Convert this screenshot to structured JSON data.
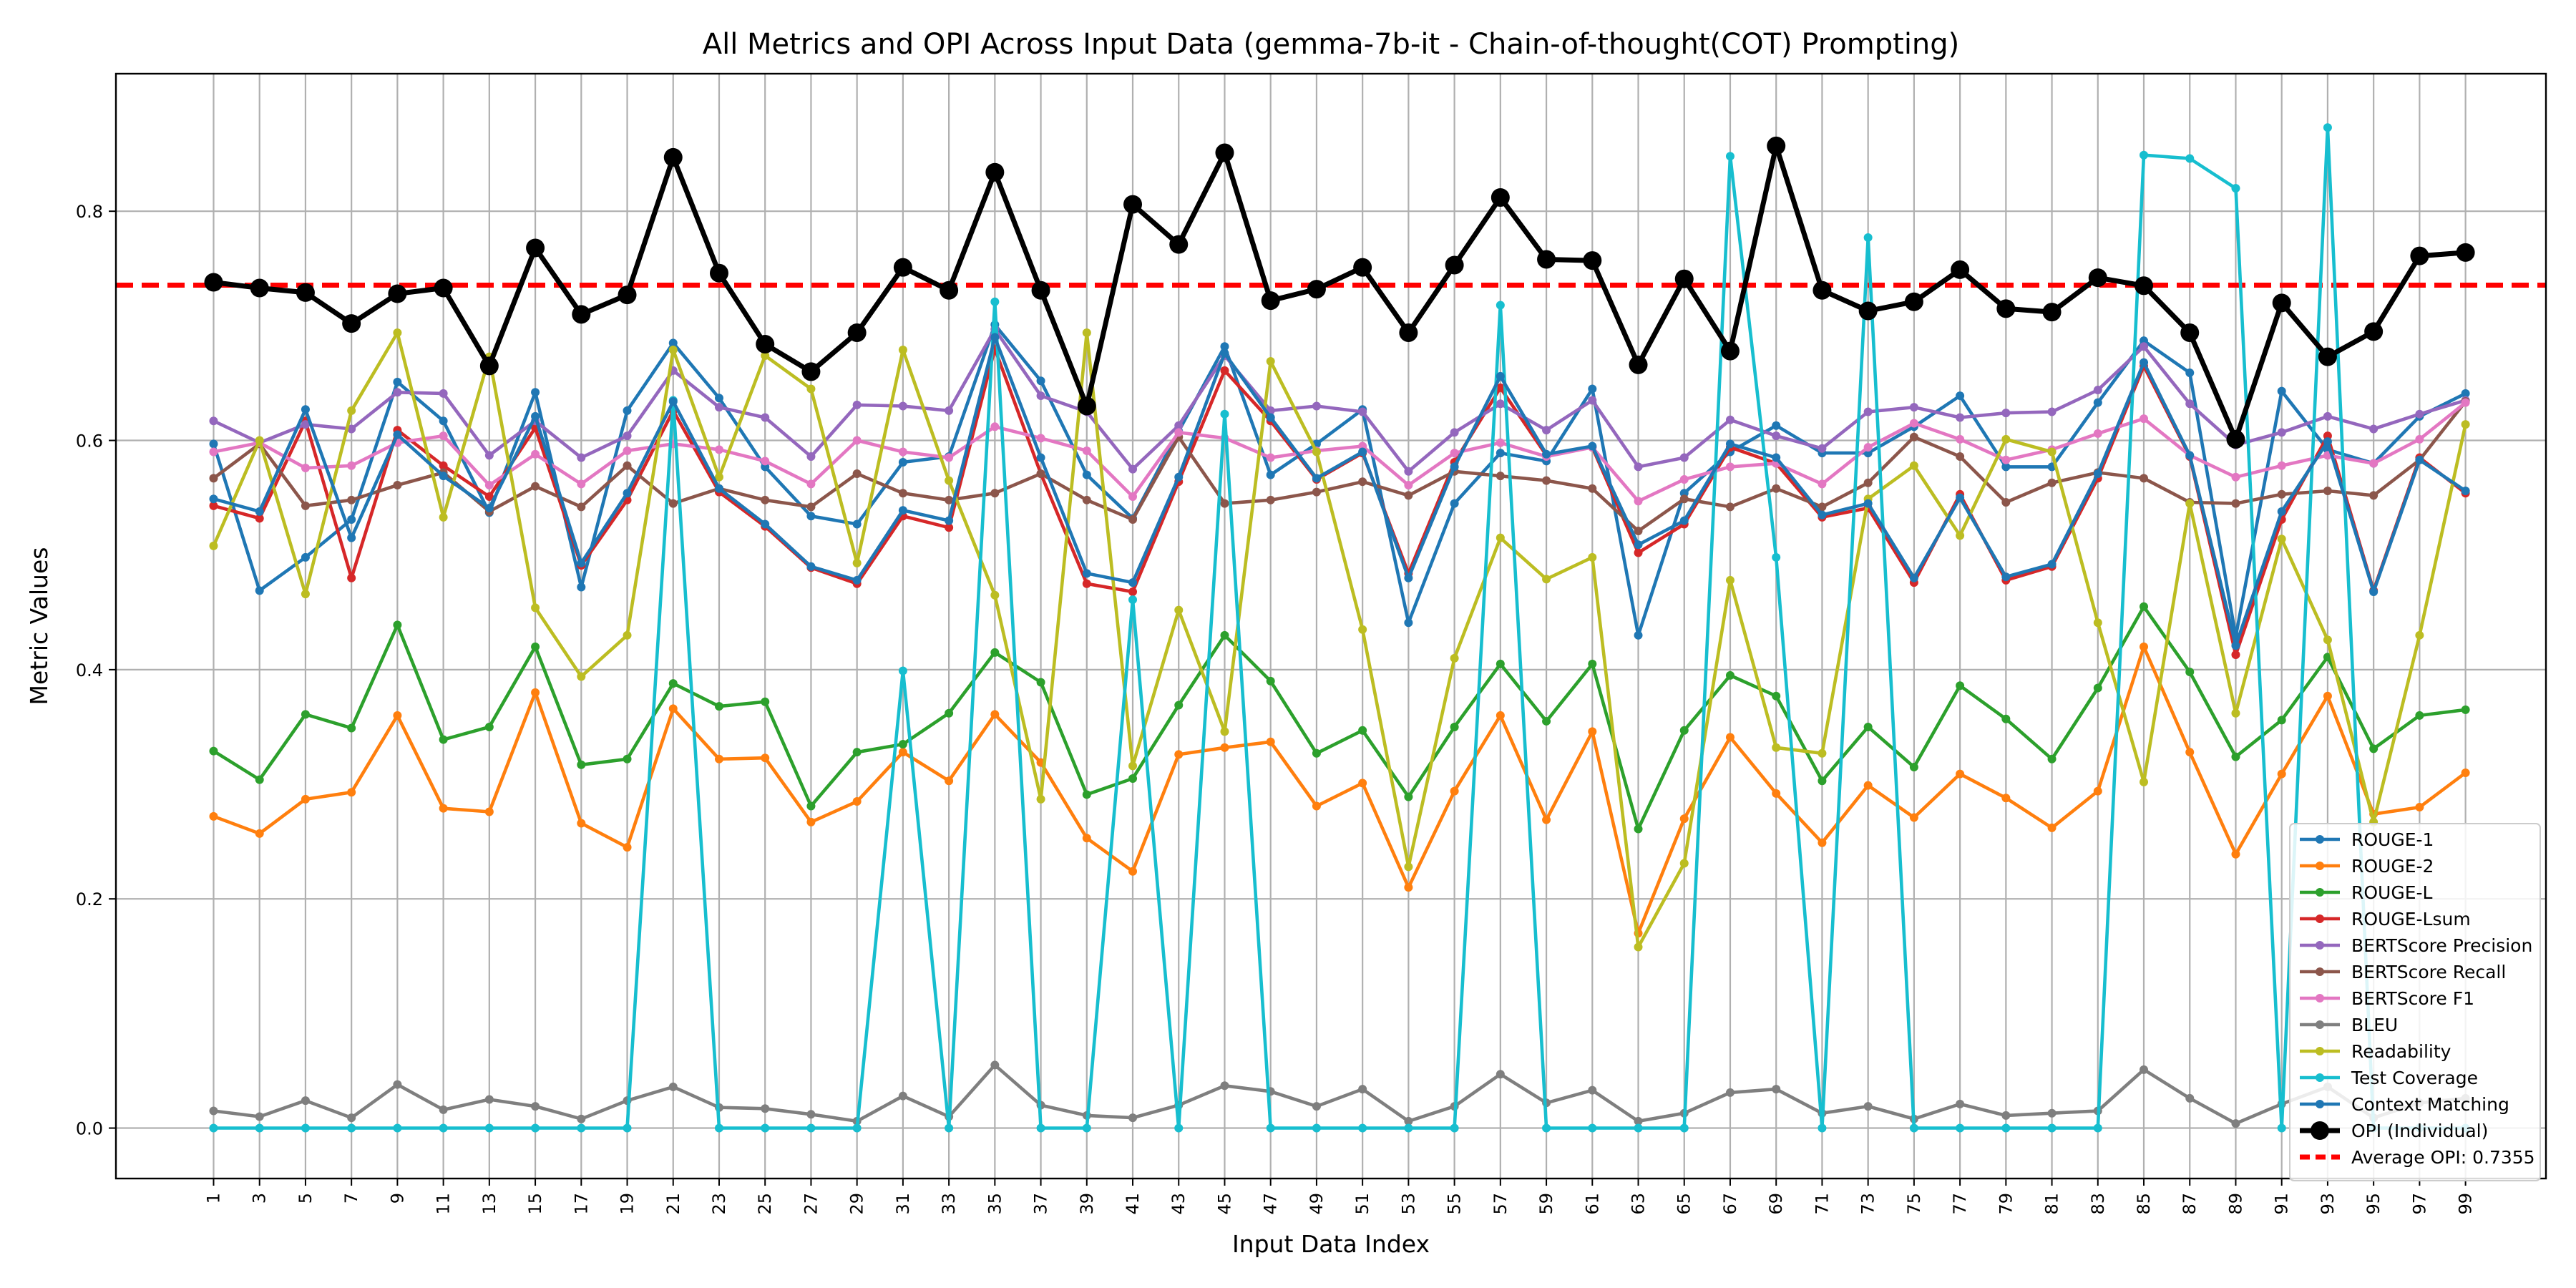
{
  "chart_data": {
    "type": "line",
    "title": "All Metrics and OPI Across Input Data (gemma-7b-it - Chain-of-thought(COT) Prompting)",
    "xlabel": "Input Data Index",
    "ylabel": "Metric Values",
    "x": [
      1,
      3,
      5,
      7,
      9,
      11,
      13,
      15,
      17,
      19,
      21,
      23,
      25,
      27,
      29,
      31,
      33,
      35,
      37,
      39,
      41,
      43,
      45,
      47,
      49,
      51,
      53,
      55,
      57,
      59,
      61,
      63,
      65,
      67,
      69,
      71,
      73,
      75,
      77,
      79,
      81,
      83,
      85,
      87,
      89,
      91,
      93,
      95,
      97,
      99
    ],
    "x_tick_labels": [
      "1",
      "3",
      "5",
      "7",
      "9",
      "11",
      "13",
      "15",
      "17",
      "19",
      "21",
      "23",
      "25",
      "27",
      "29",
      "31",
      "33",
      "35",
      "37",
      "39",
      "41",
      "43",
      "45",
      "47",
      "49",
      "51",
      "53",
      "55",
      "57",
      "59",
      "61",
      "63",
      "65",
      "67",
      "69",
      "71",
      "73",
      "75",
      "77",
      "79",
      "81",
      "83",
      "85",
      "87",
      "89",
      "91",
      "93",
      "95",
      "97",
      "99"
    ],
    "ylim": [
      -0.044,
      0.92
    ],
    "y_ticks": [
      0.0,
      0.2,
      0.4,
      0.6,
      0.8
    ],
    "y_tick_labels": [
      "0.0",
      "0.2",
      "0.4",
      "0.6",
      "0.8"
    ],
    "grid": true,
    "legend_placement": "lower-right",
    "series": [
      {
        "name": "ROUGE-1",
        "color": "#1f77b4",
        "style": "line-marker",
        "values": [
          0.597,
          0.469,
          0.498,
          0.531,
          0.651,
          0.617,
          0.537,
          0.642,
          0.472,
          0.626,
          0.685,
          0.637,
          0.577,
          0.534,
          0.527,
          0.581,
          0.586,
          0.701,
          0.652,
          0.57,
          0.532,
          0.608,
          0.682,
          0.57,
          0.597,
          0.627,
          0.441,
          0.545,
          0.589,
          0.582,
          0.645,
          0.43,
          0.554,
          0.59,
          0.613,
          0.589,
          0.589,
          0.612,
          0.639,
          0.577,
          0.577,
          0.633,
          0.687,
          0.659,
          0.429,
          0.643,
          0.592,
          0.58,
          0.621,
          0.641
        ]
      },
      {
        "name": "ROUGE-2",
        "color": "#ff7f0e",
        "style": "line-marker",
        "values": [
          0.272,
          0.257,
          0.287,
          0.293,
          0.36,
          0.279,
          0.276,
          0.38,
          0.266,
          0.245,
          0.366,
          0.322,
          0.323,
          0.267,
          0.285,
          0.328,
          0.303,
          0.361,
          0.319,
          0.253,
          0.224,
          0.326,
          0.332,
          0.337,
          0.281,
          0.301,
          0.21,
          0.294,
          0.36,
          0.269,
          0.346,
          0.17,
          0.27,
          0.341,
          0.292,
          0.249,
          0.299,
          0.271,
          0.309,
          0.288,
          0.262,
          0.294,
          0.42,
          0.328,
          0.239,
          0.309,
          0.377,
          0.274,
          0.28,
          0.31
        ]
      },
      {
        "name": "ROUGE-L",
        "color": "#2ca02c",
        "style": "line-marker",
        "values": [
          0.329,
          0.304,
          0.361,
          0.349,
          0.439,
          0.339,
          0.35,
          0.42,
          0.317,
          0.322,
          0.388,
          0.368,
          0.372,
          0.281,
          0.328,
          0.335,
          0.362,
          0.415,
          0.389,
          0.291,
          0.305,
          0.369,
          0.43,
          0.39,
          0.327,
          0.347,
          0.289,
          0.35,
          0.405,
          0.355,
          0.405,
          0.261,
          0.347,
          0.395,
          0.377,
          0.303,
          0.35,
          0.315,
          0.386,
          0.357,
          0.322,
          0.384,
          0.455,
          0.398,
          0.324,
          0.356,
          0.411,
          0.331,
          0.36,
          0.365
        ]
      },
      {
        "name": "ROUGE-Lsum",
        "color": "#d62728",
        "style": "line-marker",
        "values": [
          0.543,
          0.532,
          0.617,
          0.48,
          0.609,
          0.578,
          0.551,
          0.611,
          0.491,
          0.548,
          0.626,
          0.555,
          0.525,
          0.489,
          0.475,
          0.534,
          0.524,
          0.68,
          0.571,
          0.475,
          0.468,
          0.564,
          0.661,
          0.617,
          0.566,
          0.589,
          0.484,
          0.581,
          0.646,
          0.587,
          0.594,
          0.502,
          0.527,
          0.594,
          0.58,
          0.533,
          0.541,
          0.476,
          0.553,
          0.478,
          0.49,
          0.567,
          0.665,
          0.586,
          0.413,
          0.531,
          0.604,
          0.469,
          0.585,
          0.554
        ]
      },
      {
        "name": "BERTScore Precision",
        "color": "#9467bd",
        "style": "line-marker",
        "values": [
          0.617,
          0.598,
          0.614,
          0.61,
          0.642,
          0.641,
          0.587,
          0.617,
          0.585,
          0.604,
          0.661,
          0.629,
          0.62,
          0.586,
          0.631,
          0.63,
          0.626,
          0.697,
          0.639,
          0.625,
          0.575,
          0.613,
          0.674,
          0.626,
          0.63,
          0.625,
          0.573,
          0.607,
          0.632,
          0.609,
          0.635,
          0.577,
          0.585,
          0.618,
          0.604,
          0.593,
          0.625,
          0.629,
          0.62,
          0.624,
          0.625,
          0.644,
          0.682,
          0.632,
          0.596,
          0.607,
          0.621,
          0.61,
          0.623,
          0.635
        ]
      },
      {
        "name": "BERTScore Recall",
        "color": "#8c564b",
        "style": "line-marker",
        "values": [
          0.567,
          0.597,
          0.543,
          0.548,
          0.561,
          0.572,
          0.538,
          0.56,
          0.542,
          0.578,
          0.545,
          0.558,
          0.548,
          0.542,
          0.571,
          0.554,
          0.548,
          0.554,
          0.571,
          0.548,
          0.531,
          0.603,
          0.545,
          0.548,
          0.555,
          0.564,
          0.552,
          0.573,
          0.569,
          0.565,
          0.558,
          0.521,
          0.549,
          0.542,
          0.558,
          0.542,
          0.563,
          0.603,
          0.586,
          0.546,
          0.563,
          0.572,
          0.567,
          0.546,
          0.545,
          0.553,
          0.556,
          0.552,
          0.583,
          0.634
        ]
      },
      {
        "name": "BERTScore F1",
        "color": "#e377c2",
        "style": "line-marker",
        "values": [
          0.59,
          0.598,
          0.576,
          0.578,
          0.598,
          0.604,
          0.561,
          0.588,
          0.562,
          0.591,
          0.597,
          0.592,
          0.582,
          0.562,
          0.6,
          0.59,
          0.585,
          0.612,
          0.602,
          0.591,
          0.551,
          0.607,
          0.602,
          0.585,
          0.591,
          0.595,
          0.561,
          0.589,
          0.598,
          0.586,
          0.594,
          0.547,
          0.566,
          0.577,
          0.58,
          0.562,
          0.594,
          0.615,
          0.601,
          0.583,
          0.592,
          0.606,
          0.619,
          0.587,
          0.568,
          0.578,
          0.587,
          0.58,
          0.601,
          0.633
        ]
      },
      {
        "name": "BLEU",
        "color": "#7f7f7f",
        "style": "line-marker",
        "values": [
          0.015,
          0.01,
          0.024,
          0.009,
          0.038,
          0.016,
          0.025,
          0.019,
          0.008,
          0.024,
          0.036,
          0.018,
          0.017,
          0.012,
          0.006,
          0.028,
          0.01,
          0.055,
          0.02,
          0.011,
          0.009,
          0.02,
          0.037,
          0.032,
          0.019,
          0.034,
          0.006,
          0.019,
          0.047,
          0.022,
          0.033,
          0.006,
          0.013,
          0.031,
          0.034,
          0.013,
          0.019,
          0.008,
          0.021,
          0.011,
          0.013,
          0.015,
          0.051,
          0.026,
          0.004,
          0.021,
          0.036,
          0.009,
          0.022,
          0.026
        ]
      },
      {
        "name": "Readability",
        "color": "#bcbd22",
        "style": "line-marker",
        "values": [
          0.508,
          0.6,
          0.466,
          0.626,
          0.694,
          0.533,
          0.673,
          0.454,
          0.394,
          0.43,
          0.679,
          0.568,
          0.674,
          0.645,
          0.493,
          0.679,
          0.565,
          0.465,
          0.287,
          0.694,
          0.316,
          0.452,
          0.346,
          0.669,
          0.59,
          0.435,
          0.228,
          0.41,
          0.515,
          0.479,
          0.498,
          0.158,
          0.231,
          0.478,
          0.332,
          0.327,
          0.549,
          0.578,
          0.517,
          0.601,
          0.59,
          0.441,
          0.302,
          0.545,
          0.362,
          0.514,
          0.426,
          0.267,
          0.43,
          0.614
        ]
      },
      {
        "name": "Test Coverage",
        "color": "#17becf",
        "style": "line-marker",
        "values": [
          0.0,
          0.0,
          0.0,
          0.0,
          0.0,
          0.0,
          0.0,
          0.0,
          0.0,
          0.0,
          0.635,
          0.0,
          0.0,
          0.0,
          0.0,
          0.399,
          0.0,
          0.721,
          0.0,
          0.0,
          0.461,
          0.0,
          0.623,
          0.0,
          0.0,
          0.0,
          0.0,
          0.0,
          0.718,
          0.0,
          0.0,
          0.0,
          0.0,
          0.848,
          0.498,
          0.0,
          0.777,
          0.0,
          0.0,
          0.0,
          0.0,
          0.0,
          0.849,
          0.846,
          0.82,
          0.0,
          0.873,
          0.0,
          0.0,
          0.0
        ]
      },
      {
        "name": "Context Matching",
        "color": "#1f77b4",
        "style": "line-marker",
        "values": [
          0.549,
          0.538,
          0.627,
          0.515,
          0.605,
          0.569,
          0.541,
          0.621,
          0.493,
          0.554,
          0.634,
          0.558,
          0.527,
          0.49,
          0.478,
          0.539,
          0.53,
          0.69,
          0.585,
          0.484,
          0.476,
          0.568,
          0.676,
          0.62,
          0.567,
          0.59,
          0.48,
          0.577,
          0.656,
          0.588,
          0.595,
          0.509,
          0.53,
          0.597,
          0.585,
          0.535,
          0.545,
          0.48,
          0.55,
          0.481,
          0.492,
          0.571,
          0.668,
          0.587,
          0.421,
          0.538,
          0.599,
          0.468,
          0.583,
          0.556
        ]
      },
      {
        "name": "OPI (Individual)",
        "color": "#000000",
        "style": "line-marker-bold",
        "values": [
          0.738,
          0.733,
          0.729,
          0.702,
          0.728,
          0.733,
          0.665,
          0.768,
          0.71,
          0.727,
          0.847,
          0.746,
          0.684,
          0.66,
          0.694,
          0.751,
          0.731,
          0.834,
          0.731,
          0.63,
          0.806,
          0.771,
          0.851,
          0.722,
          0.732,
          0.751,
          0.694,
          0.753,
          0.812,
          0.758,
          0.757,
          0.666,
          0.741,
          0.678,
          0.857,
          0.731,
          0.713,
          0.721,
          0.749,
          0.715,
          0.712,
          0.742,
          0.735,
          0.694,
          0.601,
          0.72,
          0.673,
          0.695,
          0.761,
          0.764
        ]
      },
      {
        "name": "Average OPI: 0.7355",
        "color": "#ff0000",
        "style": "dashed-hline",
        "value": 0.7355
      }
    ]
  }
}
